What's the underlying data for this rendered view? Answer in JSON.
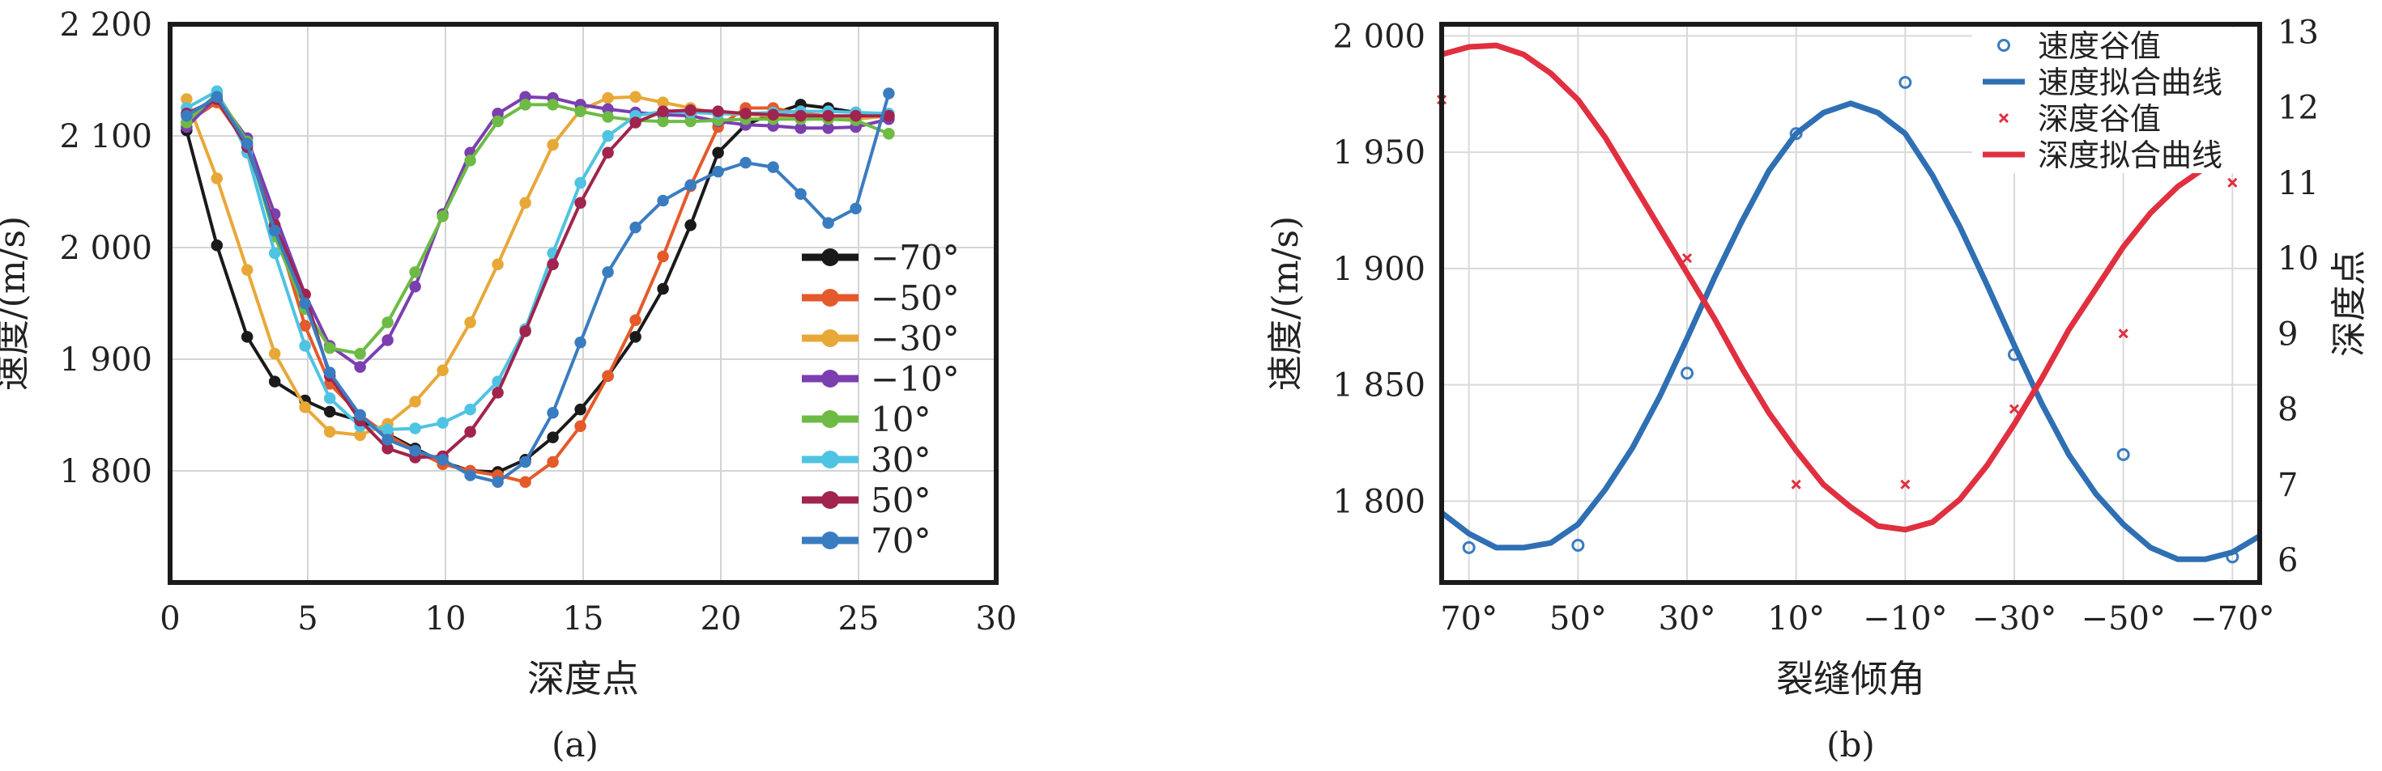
{
  "chart_data": [
    {
      "type": "line",
      "panel_label": "(a)",
      "xlabel": "深度点",
      "ylabel": "速度/(m/s)",
      "xlim": [
        0,
        30
      ],
      "ylim": [
        1700,
        2200
      ],
      "xticks": [
        0,
        5,
        10,
        15,
        20,
        25,
        30
      ],
      "xtick_labels": [
        "0",
        "5",
        "10",
        "15",
        "20",
        "25",
        "30"
      ],
      "yticks": [
        1800,
        1900,
        2000,
        2100,
        2200
      ],
      "ytick_labels": [
        "1 800",
        "1 900",
        "2 000",
        "2 100",
        "2 200"
      ],
      "grid": true,
      "legend_position": "right",
      "series": [
        {
          "name": "−70°",
          "color": "#1a1a1a",
          "x": [
            0.6,
            1.7,
            2.8,
            3.8,
            4.9,
            5.8,
            6.9,
            7.9,
            8.9,
            9.9,
            10.9,
            11.9,
            12.9,
            13.9,
            14.9,
            15.9,
            16.9,
            17.9,
            18.9,
            19.9,
            20.9,
            21.9,
            22.9,
            23.9,
            24.9,
            26.1
          ],
          "y": [
            2105,
            2002,
            1920,
            1880,
            1863,
            1853,
            1845,
            1833,
            1820,
            1808,
            1800,
            1799,
            1810,
            1830,
            1855,
            1885,
            1920,
            1963,
            2020,
            2085,
            2110,
            2120,
            2128,
            2125,
            2121,
            2118
          ]
        },
        {
          "name": "−50°",
          "color": "#e45a2b",
          "x": [
            0.6,
            1.7,
            2.8,
            3.8,
            4.9,
            5.8,
            6.9,
            7.9,
            8.9,
            9.9,
            10.9,
            11.9,
            12.9,
            13.9,
            14.9,
            15.9,
            16.9,
            17.9,
            18.9,
            19.9,
            20.9,
            21.9,
            22.9,
            23.9,
            24.9,
            26.1
          ],
          "y": [
            2112,
            2130,
            2092,
            2020,
            1930,
            1878,
            1850,
            1832,
            1818,
            1806,
            1800,
            1796,
            1790,
            1808,
            1840,
            1885,
            1935,
            1992,
            2055,
            2108,
            2125,
            2125,
            2120,
            2118,
            2117,
            2117
          ]
        },
        {
          "name": "−30°",
          "color": "#e8a838",
          "x": [
            0.6,
            1.7,
            2.8,
            3.8,
            4.9,
            5.8,
            6.9,
            7.9,
            8.9,
            9.9,
            10.9,
            11.9,
            12.9,
            13.9,
            14.9,
            15.9,
            16.9,
            17.9,
            18.9,
            19.9,
            20.9,
            21.9,
            22.9,
            23.9,
            24.9,
            26.1
          ],
          "y": [
            2133,
            2062,
            1980,
            1905,
            1857,
            1835,
            1832,
            1842,
            1862,
            1890,
            1933,
            1985,
            2040,
            2092,
            2123,
            2134,
            2135,
            2130,
            2125,
            2120,
            2119,
            2118,
            2118,
            2117,
            2115,
            2118
          ]
        },
        {
          "name": "−10°",
          "color": "#7b3fb0",
          "x": [
            0.6,
            1.7,
            2.8,
            3.8,
            4.9,
            5.8,
            6.9,
            7.9,
            8.9,
            9.9,
            10.9,
            11.9,
            12.9,
            13.9,
            14.9,
            15.9,
            16.9,
            17.9,
            18.9,
            19.9,
            20.9,
            21.9,
            22.9,
            23.9,
            24.9,
            26.1
          ],
          "y": [
            2108,
            2135,
            2098,
            2030,
            1958,
            1912,
            1893,
            1917,
            1965,
            2030,
            2085,
            2120,
            2135,
            2134,
            2128,
            2124,
            2121,
            2119,
            2118,
            2113,
            2110,
            2109,
            2107,
            2107,
            2108,
            2115
          ]
        },
        {
          "name": "10°",
          "color": "#6dbb45",
          "x": [
            0.6,
            1.7,
            2.8,
            3.8,
            4.9,
            5.8,
            6.9,
            7.9,
            8.9,
            9.9,
            10.9,
            11.9,
            12.9,
            13.9,
            14.9,
            15.9,
            16.9,
            17.9,
            18.9,
            19.9,
            20.9,
            21.9,
            22.9,
            23.9,
            24.9,
            26.1
          ],
          "y": [
            2112,
            2138,
            2095,
            2010,
            1945,
            1910,
            1905,
            1933,
            1978,
            2028,
            2078,
            2113,
            2128,
            2128,
            2122,
            2117,
            2114,
            2113,
            2113,
            2114,
            2115,
            2115,
            2115,
            2115,
            2114,
            2102
          ]
        },
        {
          "name": "30°",
          "color": "#4fc3e3",
          "x": [
            0.6,
            1.7,
            2.8,
            3.8,
            4.9,
            5.8,
            6.9,
            7.9,
            8.9,
            9.9,
            10.9,
            11.9,
            12.9,
            13.9,
            14.9,
            15.9,
            16.9,
            17.9,
            18.9,
            19.9,
            20.9,
            21.9,
            22.9,
            23.9,
            24.9,
            26.1
          ],
          "y": [
            2125,
            2140,
            2085,
            1995,
            1912,
            1865,
            1840,
            1837,
            1838,
            1843,
            1855,
            1880,
            1927,
            1995,
            2058,
            2100,
            2118,
            2122,
            2121,
            2120,
            2120,
            2121,
            2122,
            2122,
            2121,
            2120
          ]
        },
        {
          "name": "50°",
          "color": "#a0244e",
          "x": [
            0.6,
            1.7,
            2.8,
            3.8,
            4.9,
            5.8,
            6.9,
            7.9,
            8.9,
            9.9,
            10.9,
            11.9,
            12.9,
            13.9,
            14.9,
            15.9,
            16.9,
            17.9,
            18.9,
            19.9,
            20.9,
            21.9,
            22.9,
            23.9,
            24.9,
            26.1
          ],
          "y": [
            2120,
            2133,
            2090,
            2020,
            1958,
            1885,
            1845,
            1820,
            1812,
            1813,
            1835,
            1870,
            1925,
            1985,
            2040,
            2085,
            2112,
            2122,
            2123,
            2122,
            2120,
            2119,
            2118,
            2118,
            2118,
            2118
          ]
        },
        {
          "name": "70°",
          "color": "#3a7cc0",
          "x": [
            0.6,
            1.7,
            2.8,
            3.8,
            4.9,
            5.8,
            6.9,
            7.9,
            8.9,
            9.9,
            10.9,
            11.9,
            12.9,
            13.9,
            14.9,
            15.9,
            16.9,
            17.9,
            18.9,
            19.9,
            20.9,
            21.9,
            22.9,
            23.9,
            24.9,
            26.1
          ],
          "y": [
            2118,
            2135,
            2093,
            2015,
            1950,
            1888,
            1850,
            1828,
            1818,
            1810,
            1796,
            1790,
            1808,
            1852,
            1915,
            1978,
            2018,
            2042,
            2056,
            2068,
            2076,
            2072,
            2048,
            2022,
            2035,
            2138
          ]
        }
      ]
    },
    {
      "type": "line",
      "panel_label": "(b)",
      "xlabel": "裂缝倾角",
      "ylabel": "速度/(m/s)",
      "y2label": "深度点",
      "xticks": [
        70,
        50,
        30,
        10,
        -10,
        -30,
        -50,
        -70
      ],
      "xtick_labels": [
        "70°",
        "50°",
        "30°",
        "10°",
        "−10°",
        "−30°",
        "−50°",
        "−70°"
      ],
      "xlim": [
        75,
        -75
      ],
      "ylim": [
        1765,
        2005
      ],
      "yticks": [
        1800,
        1850,
        1900,
        1950,
        2000
      ],
      "ytick_labels": [
        "1 800",
        "1 850",
        "1 900",
        "1 950",
        "2 000"
      ],
      "y2lim": [
        5.7,
        13.1
      ],
      "y2ticks": [
        6,
        7,
        8,
        9,
        10,
        11,
        12,
        13
      ],
      "y2tick_labels": [
        "6",
        "7",
        "8",
        "9",
        "10",
        "11",
        "12",
        "13"
      ],
      "grid": true,
      "legend_position": "top-right",
      "series": [
        {
          "name": "速度谷值",
          "kind": "scatter",
          "axis": "left",
          "color": "#3a7cc0",
          "x": [
            70,
            50,
            30,
            10,
            -10,
            -30,
            -50,
            -70
          ],
          "y": [
            1780,
            1781,
            1855,
            1958,
            1980,
            1863,
            1820,
            1776
          ]
        },
        {
          "name": "速度拟合曲线",
          "kind": "line",
          "axis": "left",
          "color": "#2f6fb3",
          "x": [
            75,
            70,
            65,
            60,
            55,
            50,
            45,
            40,
            35,
            30,
            25,
            20,
            15,
            10,
            5,
            0,
            -5,
            -10,
            -15,
            -20,
            -25,
            -30,
            -35,
            -40,
            -45,
            -50,
            -55,
            -60,
            -65,
            -70,
            -75
          ],
          "y": [
            1795,
            1786,
            1780,
            1780,
            1782,
            1790,
            1805,
            1823,
            1845,
            1870,
            1896,
            1920,
            1942,
            1958,
            1967,
            1971,
            1967,
            1958,
            1940,
            1918,
            1893,
            1867,
            1842,
            1820,
            1803,
            1790,
            1780,
            1775,
            1775,
            1778,
            1785
          ]
        },
        {
          "name": "深度谷值",
          "kind": "scatter",
          "axis": "right",
          "color": "#e03040",
          "x": [
            75,
            30,
            10,
            -10,
            -30,
            -50,
            -70
          ],
          "y": [
            12.1,
            10.0,
            7.0,
            7.0,
            8.0,
            9.0,
            11.0
          ]
        },
        {
          "name": "深度拟合曲线",
          "kind": "line",
          "axis": "right",
          "color": "#e03040",
          "x": [
            75,
            70,
            65,
            60,
            55,
            50,
            45,
            40,
            35,
            30,
            25,
            20,
            15,
            10,
            5,
            0,
            -5,
            -10,
            -15,
            -20,
            -25,
            -30,
            -35,
            -40,
            -45,
            -50,
            -55,
            -60,
            -65,
            -70,
            -75
          ],
          "y": [
            12.7,
            12.8,
            12.82,
            12.7,
            12.45,
            12.1,
            11.6,
            11.0,
            10.4,
            9.8,
            9.2,
            8.55,
            7.95,
            7.45,
            7.0,
            6.7,
            6.45,
            6.4,
            6.5,
            6.8,
            7.25,
            7.8,
            8.4,
            9.05,
            9.6,
            10.15,
            10.6,
            10.95,
            11.2,
            11.35,
            11.45
          ]
        }
      ]
    }
  ]
}
